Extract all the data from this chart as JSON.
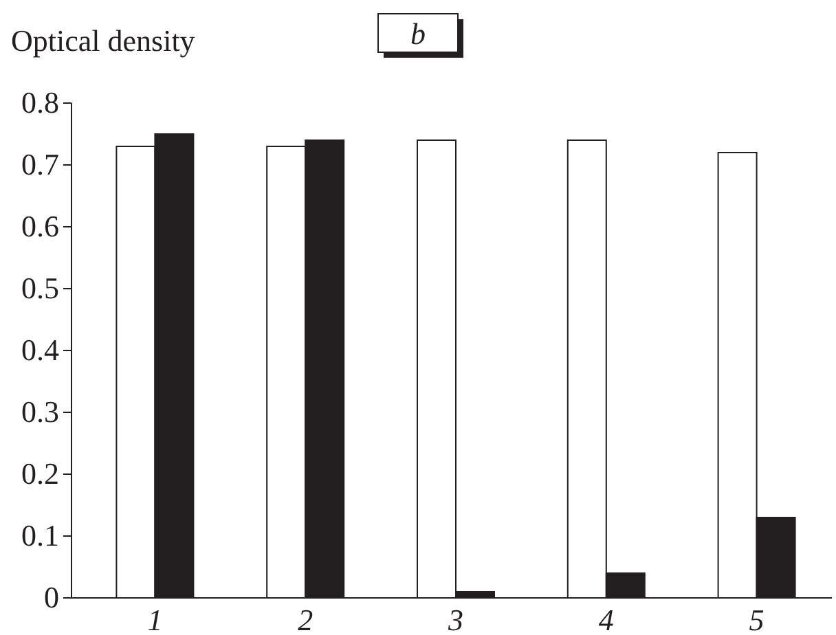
{
  "chart_data": {
    "type": "bar",
    "title": "b",
    "ylabel": "Optical density",
    "categories": [
      "1",
      "2",
      "3",
      "4",
      "5"
    ],
    "series": [
      {
        "color": "#ffffff",
        "values": [
          0.73,
          0.73,
          0.74,
          0.74,
          0.72
        ]
      },
      {
        "color": "#231f20",
        "values": [
          0.75,
          0.74,
          0.01,
          0.04,
          0.13
        ]
      }
    ],
    "ylim": [
      0,
      0.8
    ],
    "yticks": [
      0,
      0.1,
      0.2,
      0.3,
      0.4,
      0.5,
      0.6,
      0.7,
      0.8
    ],
    "grid": false
  }
}
